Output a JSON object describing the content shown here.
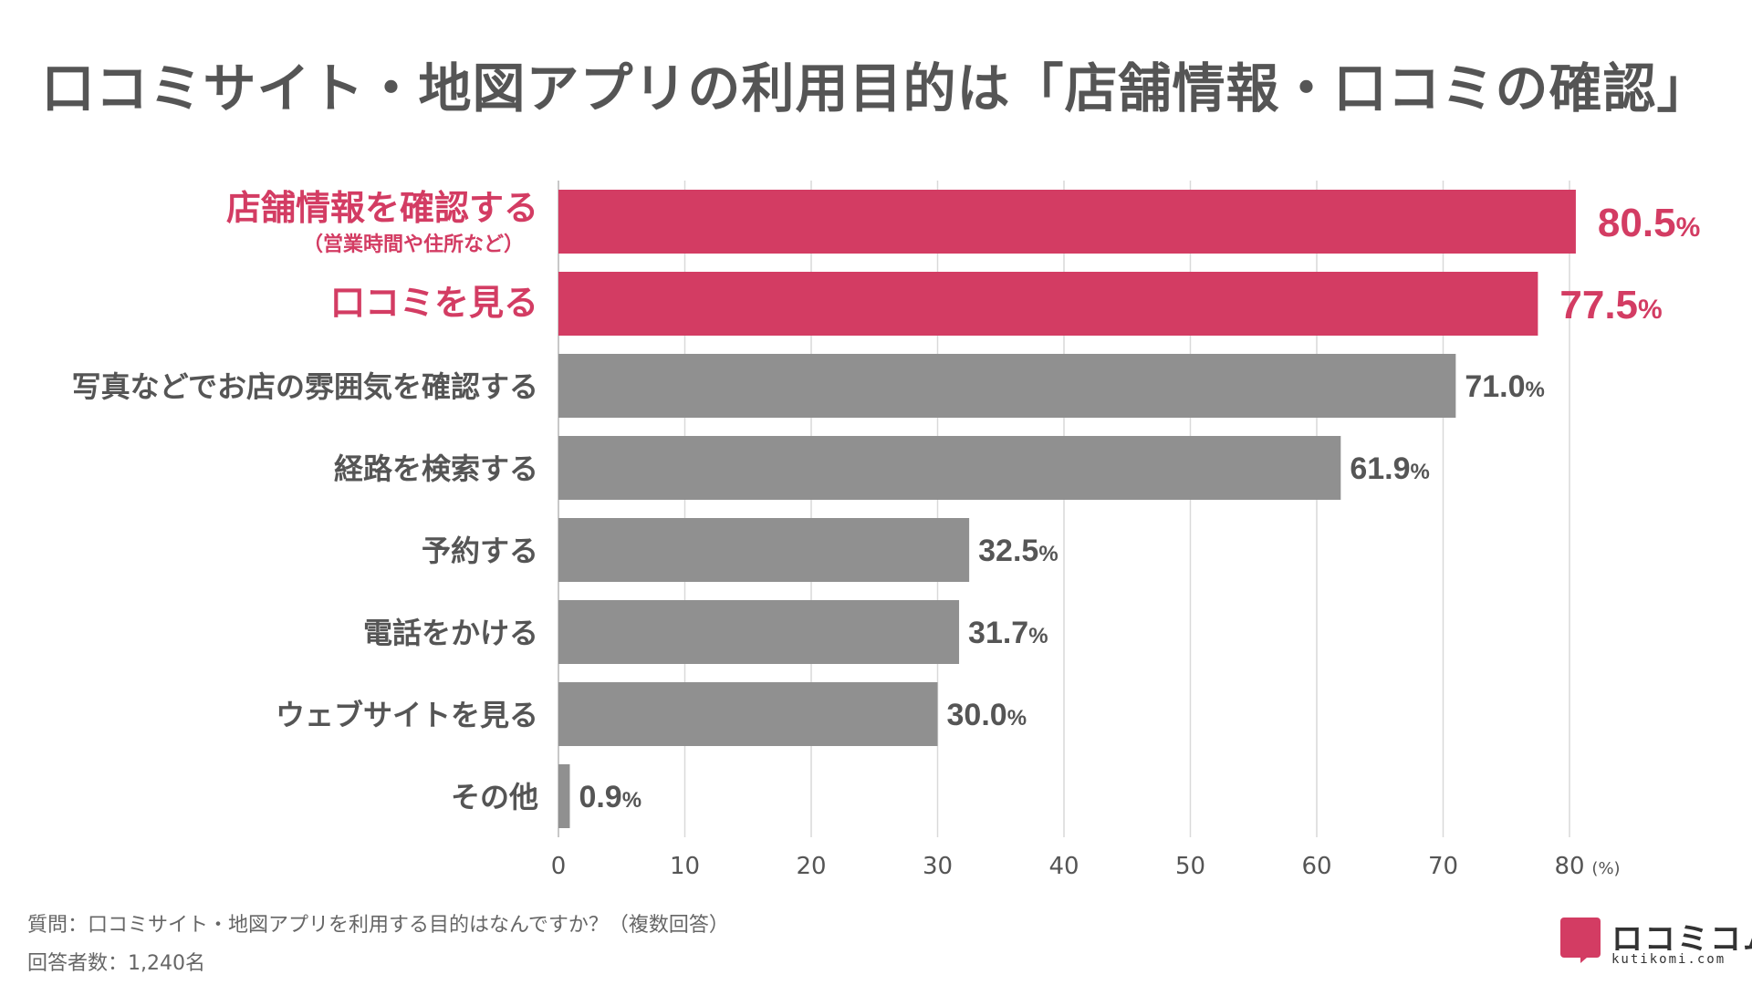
{
  "title": "口コミサイト・地図アプリの利用目的は「店舗情報・口コミの確認」",
  "chart_data": {
    "type": "bar",
    "orientation": "horizontal",
    "title": "口コミサイト・地図アプリの利用目的は「店舗情報・口コミの確認」",
    "categories": [
      {
        "label": "店舗情報を確認する",
        "sublabel": "（営業時間や住所など）",
        "highlight": true
      },
      {
        "label": "口コミを見る",
        "highlight": true
      },
      {
        "label": "写真などでお店の雰囲気を確認する",
        "highlight": false
      },
      {
        "label": "経路を検索する",
        "highlight": false
      },
      {
        "label": "予約する",
        "highlight": false
      },
      {
        "label": "電話をかける",
        "highlight": false
      },
      {
        "label": "ウェブサイトを見る",
        "highlight": false
      },
      {
        "label": "その他",
        "highlight": false
      }
    ],
    "values": [
      80.5,
      77.5,
      71.0,
      61.9,
      32.5,
      31.7,
      30.0,
      0.9
    ],
    "value_labels": [
      "80.5",
      "77.5",
      "71.0",
      "61.9",
      "32.5",
      "31.7",
      "30.0",
      "0.9"
    ],
    "value_unit": "%",
    "xlim": [
      0,
      80
    ],
    "xticks": [
      "0",
      "10",
      "20",
      "30",
      "40",
      "50",
      "60",
      "70",
      "80"
    ],
    "xunit": "(%)",
    "grid": true,
    "colors": {
      "highlight": "#d33c63",
      "normal": "#909090",
      "grid": "#d9d9d9",
      "label": "#555555"
    }
  },
  "footnote": {
    "question": "質問：口コミサイト・地図アプリを利用する目的はなんですか？（複数回答）",
    "respondents": "回答者数：1,240名"
  },
  "logo": {
    "name": "ロコミコム",
    "sub": "kutikomi.com"
  }
}
